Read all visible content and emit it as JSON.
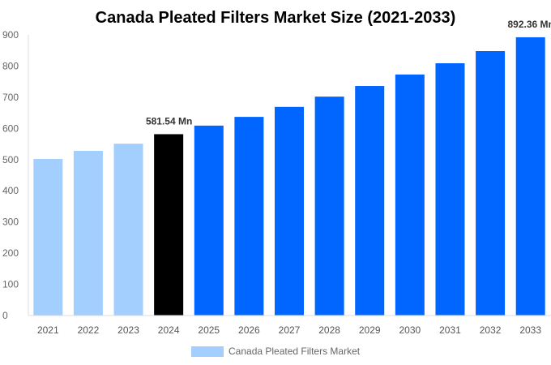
{
  "chart_data": {
    "type": "bar",
    "title": "Canada Pleated Filters Market Size (2021-2033)",
    "xlabel": "",
    "ylabel": "",
    "ylim": [
      0,
      900
    ],
    "yticks": [
      0,
      100,
      200,
      300,
      400,
      500,
      600,
      700,
      800,
      900
    ],
    "grid": false,
    "legend_placement": "bottom",
    "categories": [
      "2021",
      "2022",
      "2023",
      "2024",
      "2025",
      "2026",
      "2027",
      "2028",
      "2029",
      "2030",
      "2031",
      "2032",
      "2033"
    ],
    "series": [
      {
        "name": "Canada Pleated Filters Market",
        "values": [
          502,
          528,
          551,
          581.54,
          609,
          637,
          669,
          702,
          736,
          773,
          809,
          848,
          892.36
        ]
      }
    ],
    "bar_colors": [
      "#a3cfff",
      "#a3cfff",
      "#a3cfff",
      "#000000",
      "#0066ff",
      "#0066ff",
      "#0066ff",
      "#0066ff",
      "#0066ff",
      "#0066ff",
      "#0066ff",
      "#0066ff",
      "#0066ff"
    ],
    "legend_color": "#a3cfff",
    "annotations": [
      {
        "category": "2024",
        "text": "581.54 Mn"
      },
      {
        "category": "2033",
        "text": "892.36 Mn"
      }
    ]
  }
}
